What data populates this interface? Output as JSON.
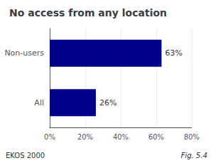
{
  "chart_data": {
    "type": "bar",
    "orientation": "horizontal",
    "title": "No access from any location",
    "categories": [
      "All",
      "Non-users"
    ],
    "values": [
      26,
      63
    ],
    "value_labels": [
      "26%",
      "63%"
    ],
    "data_labels": true,
    "color": "#00008B",
    "xlim": [
      0,
      80
    ],
    "xticks": [
      {
        "value": 0,
        "label": "0%"
      },
      {
        "value": 20,
        "label": "20%"
      },
      {
        "value": 40,
        "label": "40%"
      },
      {
        "value": 60,
        "label": "60%"
      },
      {
        "value": 80,
        "label": "80%"
      }
    ],
    "grid": true,
    "annotations": [
      "EKOS 2000",
      "Fig. 5.4"
    ]
  }
}
